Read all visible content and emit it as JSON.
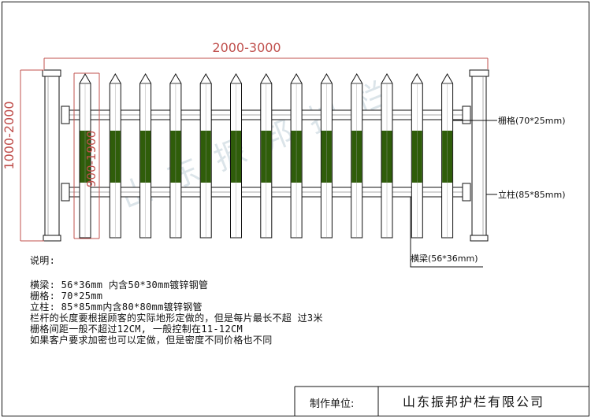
{
  "dimensions": {
    "width_range": "2000-3000",
    "height_range": "1000-2000",
    "picket_range": "900-1900"
  },
  "callouts": {
    "picket": "栅格(70*25mm)",
    "post": "立柱(85*85mm)",
    "rail": "横梁(56*36mm)"
  },
  "notes": {
    "heading": "说明:",
    "line1": "横梁: 56*36mm 内含50*30mm镀锌钢管",
    "line2": "栅格: 70*25mm",
    "line3": "立柱: 85*85mm内含80*80mm镀锌钢管",
    "line4": "栏杆的长度要根据顾客的实际地形定做的，但是每片最长不超 过3米",
    "line5": "栅格间距一般不超过12CM, 一般控制在11-12CM",
    "line6": "如果客户要求加密也可以定做，但是密度不同价格也不同"
  },
  "title_block": {
    "label": "制作单位:",
    "company": "山东振邦护栏有限公司"
  },
  "watermark": "山东振邦护栏",
  "colors": {
    "dimension": "#c0504d",
    "panel_fill": "#2f5d0a",
    "line": "#111111"
  },
  "picket_count": 13
}
